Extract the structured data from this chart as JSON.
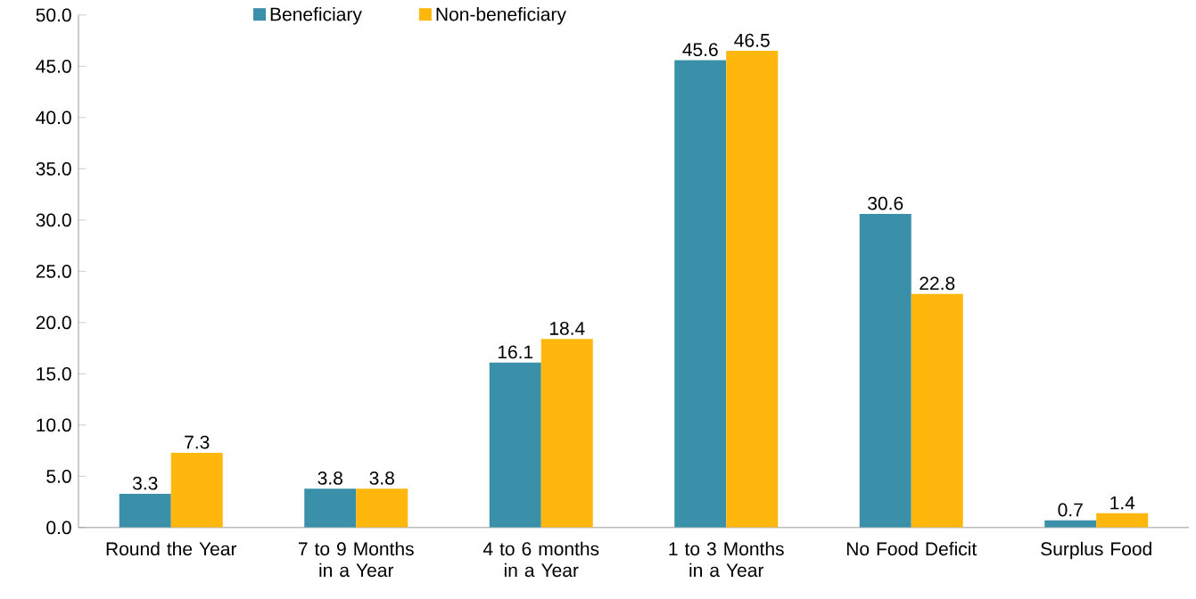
{
  "chart_data": {
    "type": "bar",
    "categories": [
      "Round the Year",
      "7 to 9 Months in a Year",
      "4 to 6 months in a Year",
      "1 to 3 Months in a Year",
      "No Food Deficit",
      "Surplus Food"
    ],
    "series": [
      {
        "name": "Beneficiary",
        "color": "#3a90a8",
        "values": [
          3.3,
          3.8,
          16.1,
          45.6,
          30.6,
          0.7
        ]
      },
      {
        "name": "Non-beneficiary",
        "color": "#ffb70d",
        "values": [
          7.3,
          3.8,
          18.4,
          46.5,
          22.8,
          1.4
        ]
      }
    ],
    "ylim": [
      0,
      50
    ],
    "yticks": [
      {
        "value": 0,
        "label": "0.0"
      },
      {
        "value": 5,
        "label": "5.0"
      },
      {
        "value": 10,
        "label": "10.0"
      },
      {
        "value": 15,
        "label": "15.0"
      },
      {
        "value": 20,
        "label": "20.0"
      },
      {
        "value": 25,
        "label": "25.0"
      },
      {
        "value": 30,
        "label": "30.0"
      },
      {
        "value": 35,
        "label": "35.0"
      },
      {
        "value": 40,
        "label": "40.0"
      },
      {
        "value": 45,
        "label": "45.0"
      },
      {
        "value": 50,
        "label": "50.0"
      }
    ],
    "data_labels": true,
    "legend": "top",
    "grid": false
  }
}
